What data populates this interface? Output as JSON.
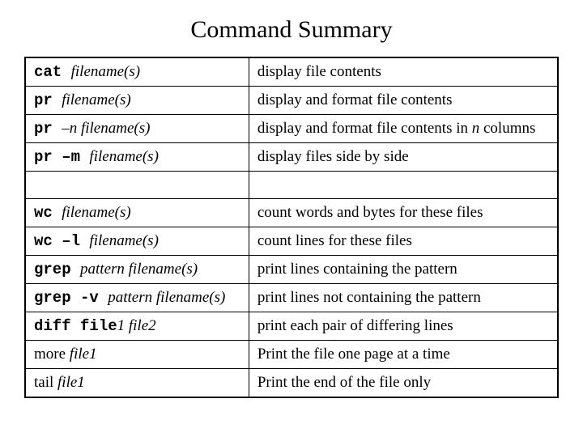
{
  "title": "Command Summary",
  "rows": [
    {
      "cmd_parts": [
        {
          "text": "cat ",
          "mono": true,
          "italic": false
        },
        {
          "text": "filename(s)",
          "mono": false,
          "italic": true
        }
      ],
      "desc": "display file contents"
    },
    {
      "cmd_parts": [
        {
          "text": "pr ",
          "mono": true,
          "italic": false
        },
        {
          "text": "filename(s)",
          "mono": false,
          "italic": true
        }
      ],
      "desc": "display and format file contents"
    },
    {
      "cmd_parts": [
        {
          "text": "pr ",
          "mono": true,
          "italic": false
        },
        {
          "text": "–n  filename(s)",
          "mono": false,
          "italic": true
        }
      ],
      "desc_parts": [
        {
          "text": "display and format file contents in ",
          "italic": false
        },
        {
          "text": "n",
          "italic": true
        },
        {
          "text": " columns",
          "italic": false
        }
      ]
    },
    {
      "cmd_parts": [
        {
          "text": "pr –m ",
          "mono": true,
          "italic": false
        },
        {
          "text": "filename(s)",
          "mono": false,
          "italic": true
        }
      ],
      "desc": "display files side by side"
    },
    {
      "empty": true
    },
    {
      "cmd_parts": [
        {
          "text": "wc ",
          "mono": true,
          "italic": false
        },
        {
          "text": "filename(s)",
          "mono": false,
          "italic": true
        }
      ],
      "desc": "count words and bytes for these files"
    },
    {
      "cmd_parts": [
        {
          "text": "wc –l ",
          "mono": true,
          "italic": false
        },
        {
          "text": "filename(s)",
          "mono": false,
          "italic": true
        }
      ],
      "desc": "count lines for these files"
    },
    {
      "cmd_parts": [
        {
          "text": "grep ",
          "mono": true,
          "italic": false
        },
        {
          "text": "pattern  filename(s)",
          "mono": false,
          "italic": true
        }
      ],
      "desc": "print lines containing the pattern"
    },
    {
      "cmd_parts": [
        {
          "text": "grep -v ",
          "mono": true,
          "italic": false
        },
        {
          "text": "pattern  filename(s)",
          "mono": false,
          "italic": true
        }
      ],
      "desc": "print lines not containing the pattern"
    },
    {
      "cmd_parts": [
        {
          "text": "diff file",
          "mono": true,
          "italic": false
        },
        {
          "text": "1  file2",
          "mono": false,
          "italic": true
        }
      ],
      "desc": "print each pair of differing lines"
    },
    {
      "cmd_parts": [
        {
          "text": "more ",
          "mono": false,
          "italic": false
        },
        {
          "text": "file1",
          "mono": false,
          "italic": true
        }
      ],
      "desc": "Print the file one page at a time"
    },
    {
      "cmd_parts": [
        {
          "text": "tail  ",
          "mono": false,
          "italic": false
        },
        {
          "text": "file1",
          "mono": false,
          "italic": true
        }
      ],
      "desc": "Print the end of the file only"
    }
  ],
  "style": {
    "background_color": "#ffffff",
    "text_color": "#000000",
    "border_color": "#000000",
    "title_fontsize": 30,
    "cell_fontsize": 19,
    "mono_font": "Courier New",
    "serif_font": "Times New Roman",
    "cmd_col_width_pct": 42,
    "desc_col_width_pct": 58
  }
}
